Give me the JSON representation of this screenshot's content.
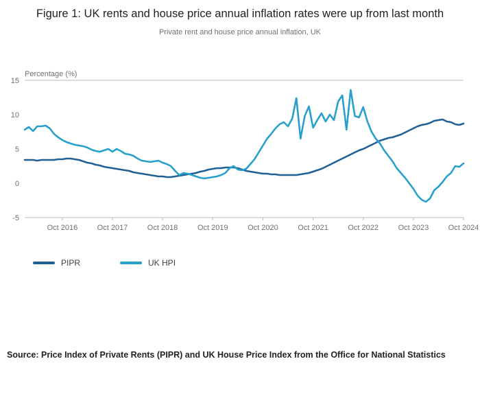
{
  "header": {
    "title": "Figure 1: UK rents and house price annual inflation rates were up from last month",
    "subtitle": "Private rent and house price annual inflation, UK"
  },
  "chart_data": {
    "type": "line",
    "title": "Figure 1: UK rents and house price annual inflation rates were up from last month",
    "subtitle": "Private rent and house price annual inflation, UK",
    "y_axis_label": "Percentage (%)",
    "ylim": [
      -5,
      15
    ],
    "y_ticks": [
      15,
      10,
      5,
      0,
      -5
    ],
    "frequency": "monthly",
    "x_start": "Jan 2016",
    "x_end": "Oct 2024",
    "x_tick_labels": [
      "Oct 2016",
      "Oct 2017",
      "Oct 2018",
      "Oct 2019",
      "Oct 2020",
      "Oct 2021",
      "Oct 2022",
      "Oct 2023",
      "Oct 2024"
    ],
    "x_tick_indices": [
      9,
      21,
      33,
      45,
      57,
      69,
      81,
      93,
      105
    ],
    "grid": "top-line-and-baseline-only",
    "legend_position": "bottom-left",
    "series": [
      {
        "name": "PIPR",
        "color": "#206095",
        "values": [
          3.4,
          3.4,
          3.4,
          3.3,
          3.4,
          3.4,
          3.4,
          3.4,
          3.5,
          3.5,
          3.6,
          3.6,
          3.5,
          3.4,
          3.2,
          3.0,
          2.9,
          2.7,
          2.6,
          2.4,
          2.3,
          2.2,
          2.1,
          2.0,
          1.9,
          1.8,
          1.6,
          1.5,
          1.4,
          1.3,
          1.2,
          1.1,
          1.0,
          1.0,
          0.9,
          0.9,
          1.0,
          1.1,
          1.2,
          1.3,
          1.4,
          1.5,
          1.7,
          1.8,
          2.0,
          2.1,
          2.2,
          2.2,
          2.3,
          2.3,
          2.3,
          2.2,
          2.0,
          1.8,
          1.7,
          1.6,
          1.5,
          1.4,
          1.4,
          1.3,
          1.3,
          1.2,
          1.2,
          1.2,
          1.2,
          1.2,
          1.3,
          1.4,
          1.5,
          1.7,
          1.9,
          2.1,
          2.4,
          2.7,
          3.0,
          3.3,
          3.6,
          3.9,
          4.2,
          4.5,
          4.8,
          5.0,
          5.3,
          5.6,
          5.9,
          6.2,
          6.4,
          6.6,
          6.7,
          6.9,
          7.1,
          7.4,
          7.7,
          8.0,
          8.3,
          8.5,
          8.6,
          8.8,
          9.1,
          9.2,
          9.3,
          9.0,
          8.9,
          8.6,
          8.5,
          8.7
        ]
      },
      {
        "name": "UK HPI",
        "color": "#27A0CC",
        "values": [
          7.8,
          8.2,
          7.6,
          8.3,
          8.3,
          8.4,
          8.0,
          7.2,
          6.7,
          6.3,
          6.0,
          5.8,
          5.6,
          5.5,
          5.4,
          5.2,
          4.9,
          4.7,
          4.6,
          4.8,
          5.0,
          4.6,
          5.0,
          4.7,
          4.3,
          4.2,
          4.0,
          3.6,
          3.3,
          3.2,
          3.1,
          3.2,
          3.3,
          3.0,
          2.8,
          2.5,
          1.8,
          1.2,
          1.5,
          1.4,
          1.2,
          1.0,
          0.8,
          0.7,
          0.8,
          0.9,
          1.0,
          1.2,
          1.5,
          2.2,
          2.5,
          2.0,
          1.9,
          2.1,
          2.8,
          3.5,
          4.5,
          5.5,
          6.5,
          7.2,
          8.0,
          8.6,
          8.9,
          8.3,
          9.4,
          12.4,
          6.5,
          9.8,
          11.2,
          8.1,
          9.2,
          10.2,
          9.0,
          10.0,
          9.2,
          11.9,
          12.8,
          7.8,
          13.6,
          9.8,
          9.6,
          11.1,
          9.0,
          7.5,
          6.5,
          5.8,
          4.8,
          4.0,
          3.2,
          2.2,
          1.5,
          0.8,
          0.0,
          -0.8,
          -1.8,
          -2.4,
          -2.7,
          -2.2,
          -1.0,
          -0.5,
          0.2,
          1.0,
          1.5,
          2.5,
          2.4,
          2.9
        ]
      }
    ]
  },
  "legend": {
    "items": [
      "PIPR",
      "UK HPI"
    ]
  },
  "source": {
    "text": "Source: Price Index of Private Rents (PIPR) and UK House Price Index from the Office for National Statistics"
  },
  "colors": {
    "pipr_line": "#206095",
    "uk_hpi_line": "#27A0CC",
    "axis_text": "#707071",
    "grid_line": "#b9b9b9",
    "title_text": "#222222"
  }
}
